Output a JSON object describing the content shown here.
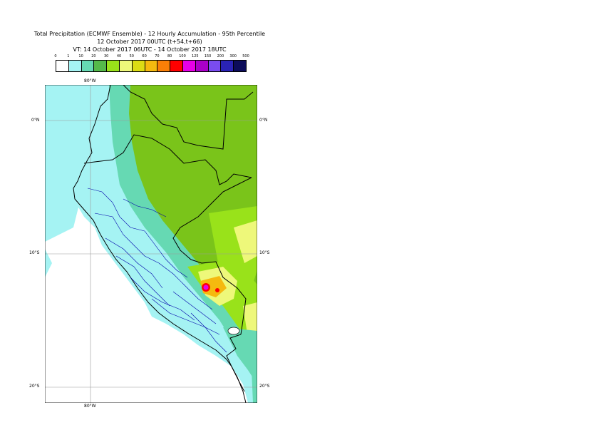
{
  "title": {
    "line1": "Total Precipitation (ECMWF Ensemble) - 12 Hourly Accumulation - 95th Percentile",
    "line2": "12 October 2017 00UTC (t+54,t+66)",
    "line3": "VT: 14 October 2017 06UTC - 14 October 2017 18UTC"
  },
  "legend": {
    "levels": [
      "0",
      "1",
      "10",
      "20",
      "30",
      "40",
      "50",
      "60",
      "70",
      "80",
      "100",
      "125",
      "150",
      "200",
      "300",
      "500"
    ],
    "colors": [
      "#ffffff",
      "#a5f3f3",
      "#66d9b3",
      "#55b94a",
      "#99e21a",
      "#eef87a",
      "#dcdc14",
      "#f5b90f",
      "#fa7f07",
      "#ff0000",
      "#e600e6",
      "#aa00c8",
      "#7a4cf0",
      "#2a23b5",
      "#0c0c5a"
    ]
  },
  "axes": {
    "lon_top": "80°W",
    "lon_bottom": "80°W",
    "lat_0_left": "0°N",
    "lat_0_right": "0°N",
    "lat_10_left": "10°S",
    "lat_10_right": "10°S",
    "lat_20_left": "20°S",
    "lat_20_right": "20°S"
  },
  "map": {
    "region": "Peru / Ecuador",
    "colors": {
      "ocean": "#ffffff",
      "light": "#a5f3f3",
      "teal": "#66d9b3",
      "green": "#7ac41a",
      "lime": "#99e21a",
      "yellow": "#eef87a",
      "gold": "#dcdc14",
      "orange": "#f5b90f",
      "red": "#ff0000",
      "magenta": "#e600e6",
      "country": "#000000",
      "province": "#0000aa"
    }
  }
}
